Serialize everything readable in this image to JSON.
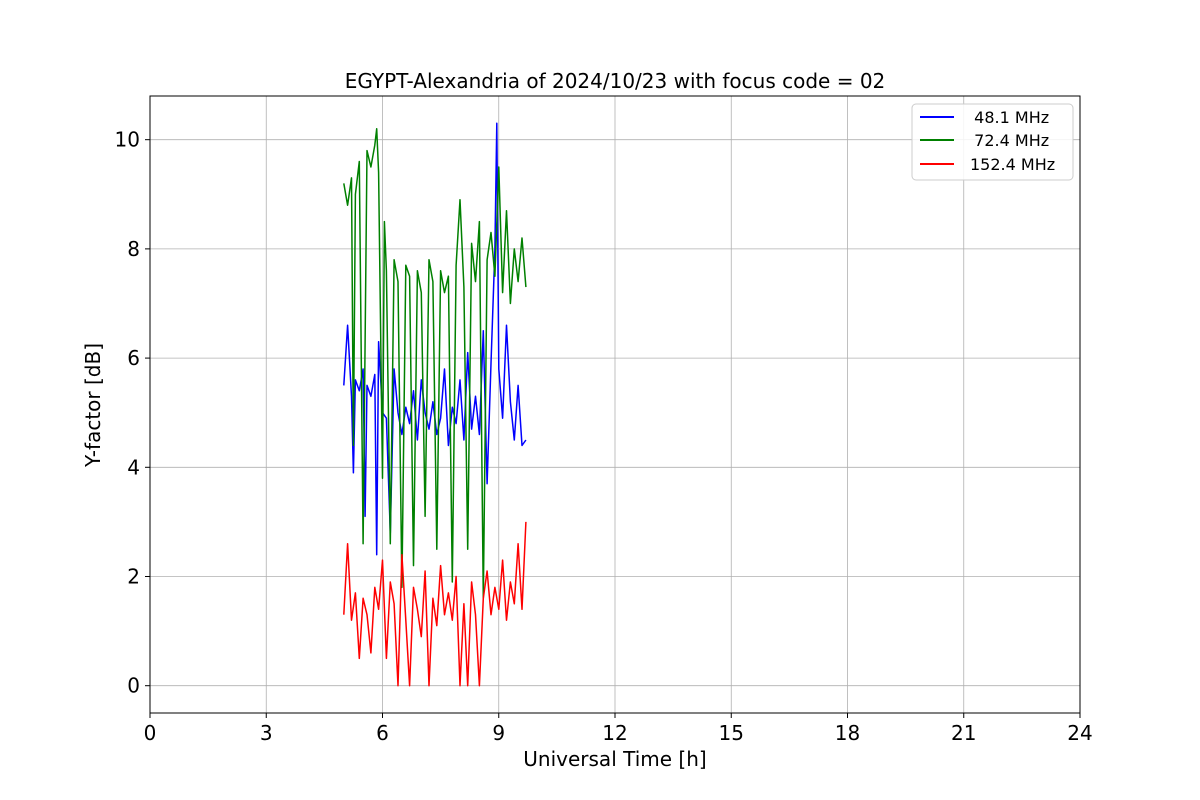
{
  "chart_data": {
    "type": "line",
    "title": "EGYPT-Alexandria of 2024/10/23 with focus code = 02",
    "xlabel": "Universal Time [h]",
    "ylabel": "Y-factor [dB]",
    "xlim": [
      0,
      24
    ],
    "ylim": [
      -0.5,
      10.8
    ],
    "xticks": [
      0,
      3,
      6,
      9,
      12,
      15,
      18,
      21,
      24
    ],
    "yticks": [
      0,
      2,
      4,
      6,
      8,
      10
    ],
    "xtick_labels": [
      "0",
      "3",
      "6",
      "9",
      "12",
      "15",
      "18",
      "21",
      "24"
    ],
    "ytick_labels": [
      "0",
      "2",
      "4",
      "6",
      "8",
      "10"
    ],
    "grid": true,
    "legend_position": "top-right",
    "series": [
      {
        "name": "  48.1 MHz",
        "color": "#0000ff",
        "x": [
          5.0,
          5.1,
          5.2,
          5.25,
          5.3,
          5.4,
          5.5,
          5.55,
          5.6,
          5.7,
          5.8,
          5.85,
          5.9,
          6.0,
          6.1,
          6.2,
          6.3,
          6.4,
          6.5,
          6.6,
          6.7,
          6.8,
          6.9,
          7.0,
          7.1,
          7.2,
          7.3,
          7.4,
          7.5,
          7.6,
          7.7,
          7.8,
          7.9,
          8.0,
          8.1,
          8.2,
          8.3,
          8.4,
          8.5,
          8.6,
          8.7,
          8.8,
          8.9,
          8.95,
          9.0,
          9.1,
          9.2,
          9.3,
          9.4,
          9.5,
          9.6,
          9.7
        ],
        "y": [
          5.5,
          6.6,
          5.3,
          3.9,
          5.6,
          5.4,
          5.8,
          3.1,
          5.5,
          5.3,
          5.7,
          2.4,
          6.3,
          5.0,
          4.9,
          2.8,
          5.8,
          5.0,
          4.6,
          5.1,
          4.8,
          5.4,
          4.5,
          5.6,
          5.0,
          4.7,
          5.2,
          4.6,
          4.9,
          5.8,
          4.4,
          5.1,
          4.8,
          5.6,
          4.5,
          6.1,
          4.7,
          5.3,
          4.6,
          6.5,
          3.7,
          5.9,
          8.0,
          10.3,
          5.8,
          4.9,
          6.6,
          5.2,
          4.5,
          5.5,
          4.4,
          4.5
        ]
      },
      {
        "name": "  72.4 MHz",
        "color": "#008000",
        "x": [
          5.0,
          5.1,
          5.2,
          5.25,
          5.3,
          5.4,
          5.5,
          5.6,
          5.7,
          5.8,
          5.85,
          5.9,
          6.0,
          6.05,
          6.1,
          6.2,
          6.3,
          6.4,
          6.5,
          6.6,
          6.7,
          6.8,
          6.9,
          7.0,
          7.1,
          7.2,
          7.3,
          7.4,
          7.5,
          7.6,
          7.7,
          7.8,
          7.9,
          8.0,
          8.1,
          8.2,
          8.3,
          8.4,
          8.5,
          8.6,
          8.7,
          8.8,
          8.9,
          9.0,
          9.1,
          9.2,
          9.3,
          9.4,
          9.5,
          9.6,
          9.7
        ],
        "y": [
          9.2,
          8.8,
          9.3,
          4.4,
          9.0,
          9.6,
          2.6,
          9.8,
          9.5,
          9.9,
          10.2,
          9.4,
          3.8,
          8.5,
          7.6,
          2.6,
          7.8,
          7.4,
          1.8,
          7.7,
          7.5,
          2.2,
          7.6,
          7.2,
          3.1,
          7.8,
          7.4,
          2.5,
          7.6,
          7.2,
          7.5,
          1.9,
          7.7,
          8.9,
          7.3,
          2.5,
          8.1,
          7.4,
          8.5,
          1.6,
          7.8,
          8.3,
          7.5,
          9.5,
          7.2,
          8.7,
          7.0,
          8.0,
          7.4,
          8.2,
          7.3
        ]
      },
      {
        "name": "152.4 MHz",
        "color": "#ff0000",
        "x": [
          5.0,
          5.1,
          5.2,
          5.3,
          5.4,
          5.5,
          5.6,
          5.7,
          5.8,
          5.9,
          6.0,
          6.1,
          6.2,
          6.3,
          6.4,
          6.5,
          6.6,
          6.7,
          6.8,
          6.9,
          7.0,
          7.1,
          7.2,
          7.3,
          7.4,
          7.5,
          7.6,
          7.7,
          7.8,
          7.9,
          8.0,
          8.1,
          8.2,
          8.3,
          8.4,
          8.5,
          8.6,
          8.7,
          8.8,
          8.9,
          9.0,
          9.1,
          9.2,
          9.3,
          9.4,
          9.5,
          9.6,
          9.7
        ],
        "y": [
          1.3,
          2.6,
          1.2,
          1.7,
          0.5,
          1.6,
          1.3,
          0.6,
          1.8,
          1.4,
          2.3,
          0.5,
          1.9,
          1.5,
          0.0,
          2.4,
          1.2,
          0.0,
          1.8,
          1.4,
          0.9,
          2.1,
          0.0,
          1.6,
          1.1,
          2.2,
          1.3,
          1.7,
          1.2,
          2.0,
          0.0,
          1.5,
          0.0,
          1.9,
          1.3,
          0.0,
          1.6,
          2.1,
          1.3,
          1.8,
          1.4,
          2.3,
          1.2,
          1.9,
          1.5,
          2.6,
          1.4,
          3.0
        ]
      }
    ]
  }
}
